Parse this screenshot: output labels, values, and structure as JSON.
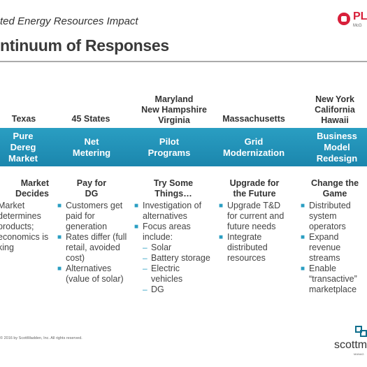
{
  "header": {
    "subtitle": "ted Energy Resources Impact",
    "title": "ntinuum of Responses"
  },
  "logo_top": {
    "text": "PL",
    "sub": "McG"
  },
  "columns": [
    {
      "region": "Texas",
      "band": "Pure\nDereg\nMarket",
      "head": "Market\nDecides",
      "body": "Market\ndetermines\nproducts;\neconomics is\nking"
    },
    {
      "region": "45 States",
      "band": "Net\nMetering",
      "head": "Pay for\nDG",
      "bullets": [
        {
          "text": "Customers get paid for generation"
        },
        {
          "text": "Rates differ (full retail, avoided cost)"
        },
        {
          "text": "Alternatives (value of solar)"
        }
      ]
    },
    {
      "region": "Maryland\nNew Hampshire\nVirginia",
      "band": "Pilot\nPrograms",
      "head": "Try Some\nThings…",
      "bullets": [
        {
          "text": "Investigation of alternatives"
        },
        {
          "text": "Focus areas include:"
        },
        {
          "text": "Solar",
          "sub": true
        },
        {
          "text": "Battery storage",
          "sub": true
        },
        {
          "text": "Electric vehicles",
          "sub": true
        },
        {
          "text": "DG",
          "sub": true
        }
      ]
    },
    {
      "region": "Massachusetts",
      "band": "Grid\nModernization",
      "head": "Upgrade for\nthe Future",
      "bullets": [
        {
          "text": "Upgrade T&D for current and future needs"
        },
        {
          "text": "Integrate distributed resources"
        }
      ]
    },
    {
      "region": "New York\nCalifornia\nHawaii",
      "band": "Business\nModel\nRedesign",
      "head": "Change the\nGame",
      "bullets": [
        {
          "text": "Distributed system operators"
        },
        {
          "text": "Expand revenue streams"
        },
        {
          "text": "Enable “transactive” marketplace"
        }
      ]
    }
  ],
  "footer": {
    "copyright": "© 2016 by ScottMadden, Inc. All rights reserved."
  },
  "logo_bottom": {
    "text": "scottm",
    "sub": "MANAG"
  },
  "colors": {
    "band": "#1b86ad",
    "bullet": "#2a9ec2",
    "brand_red": "#d81f3a"
  }
}
